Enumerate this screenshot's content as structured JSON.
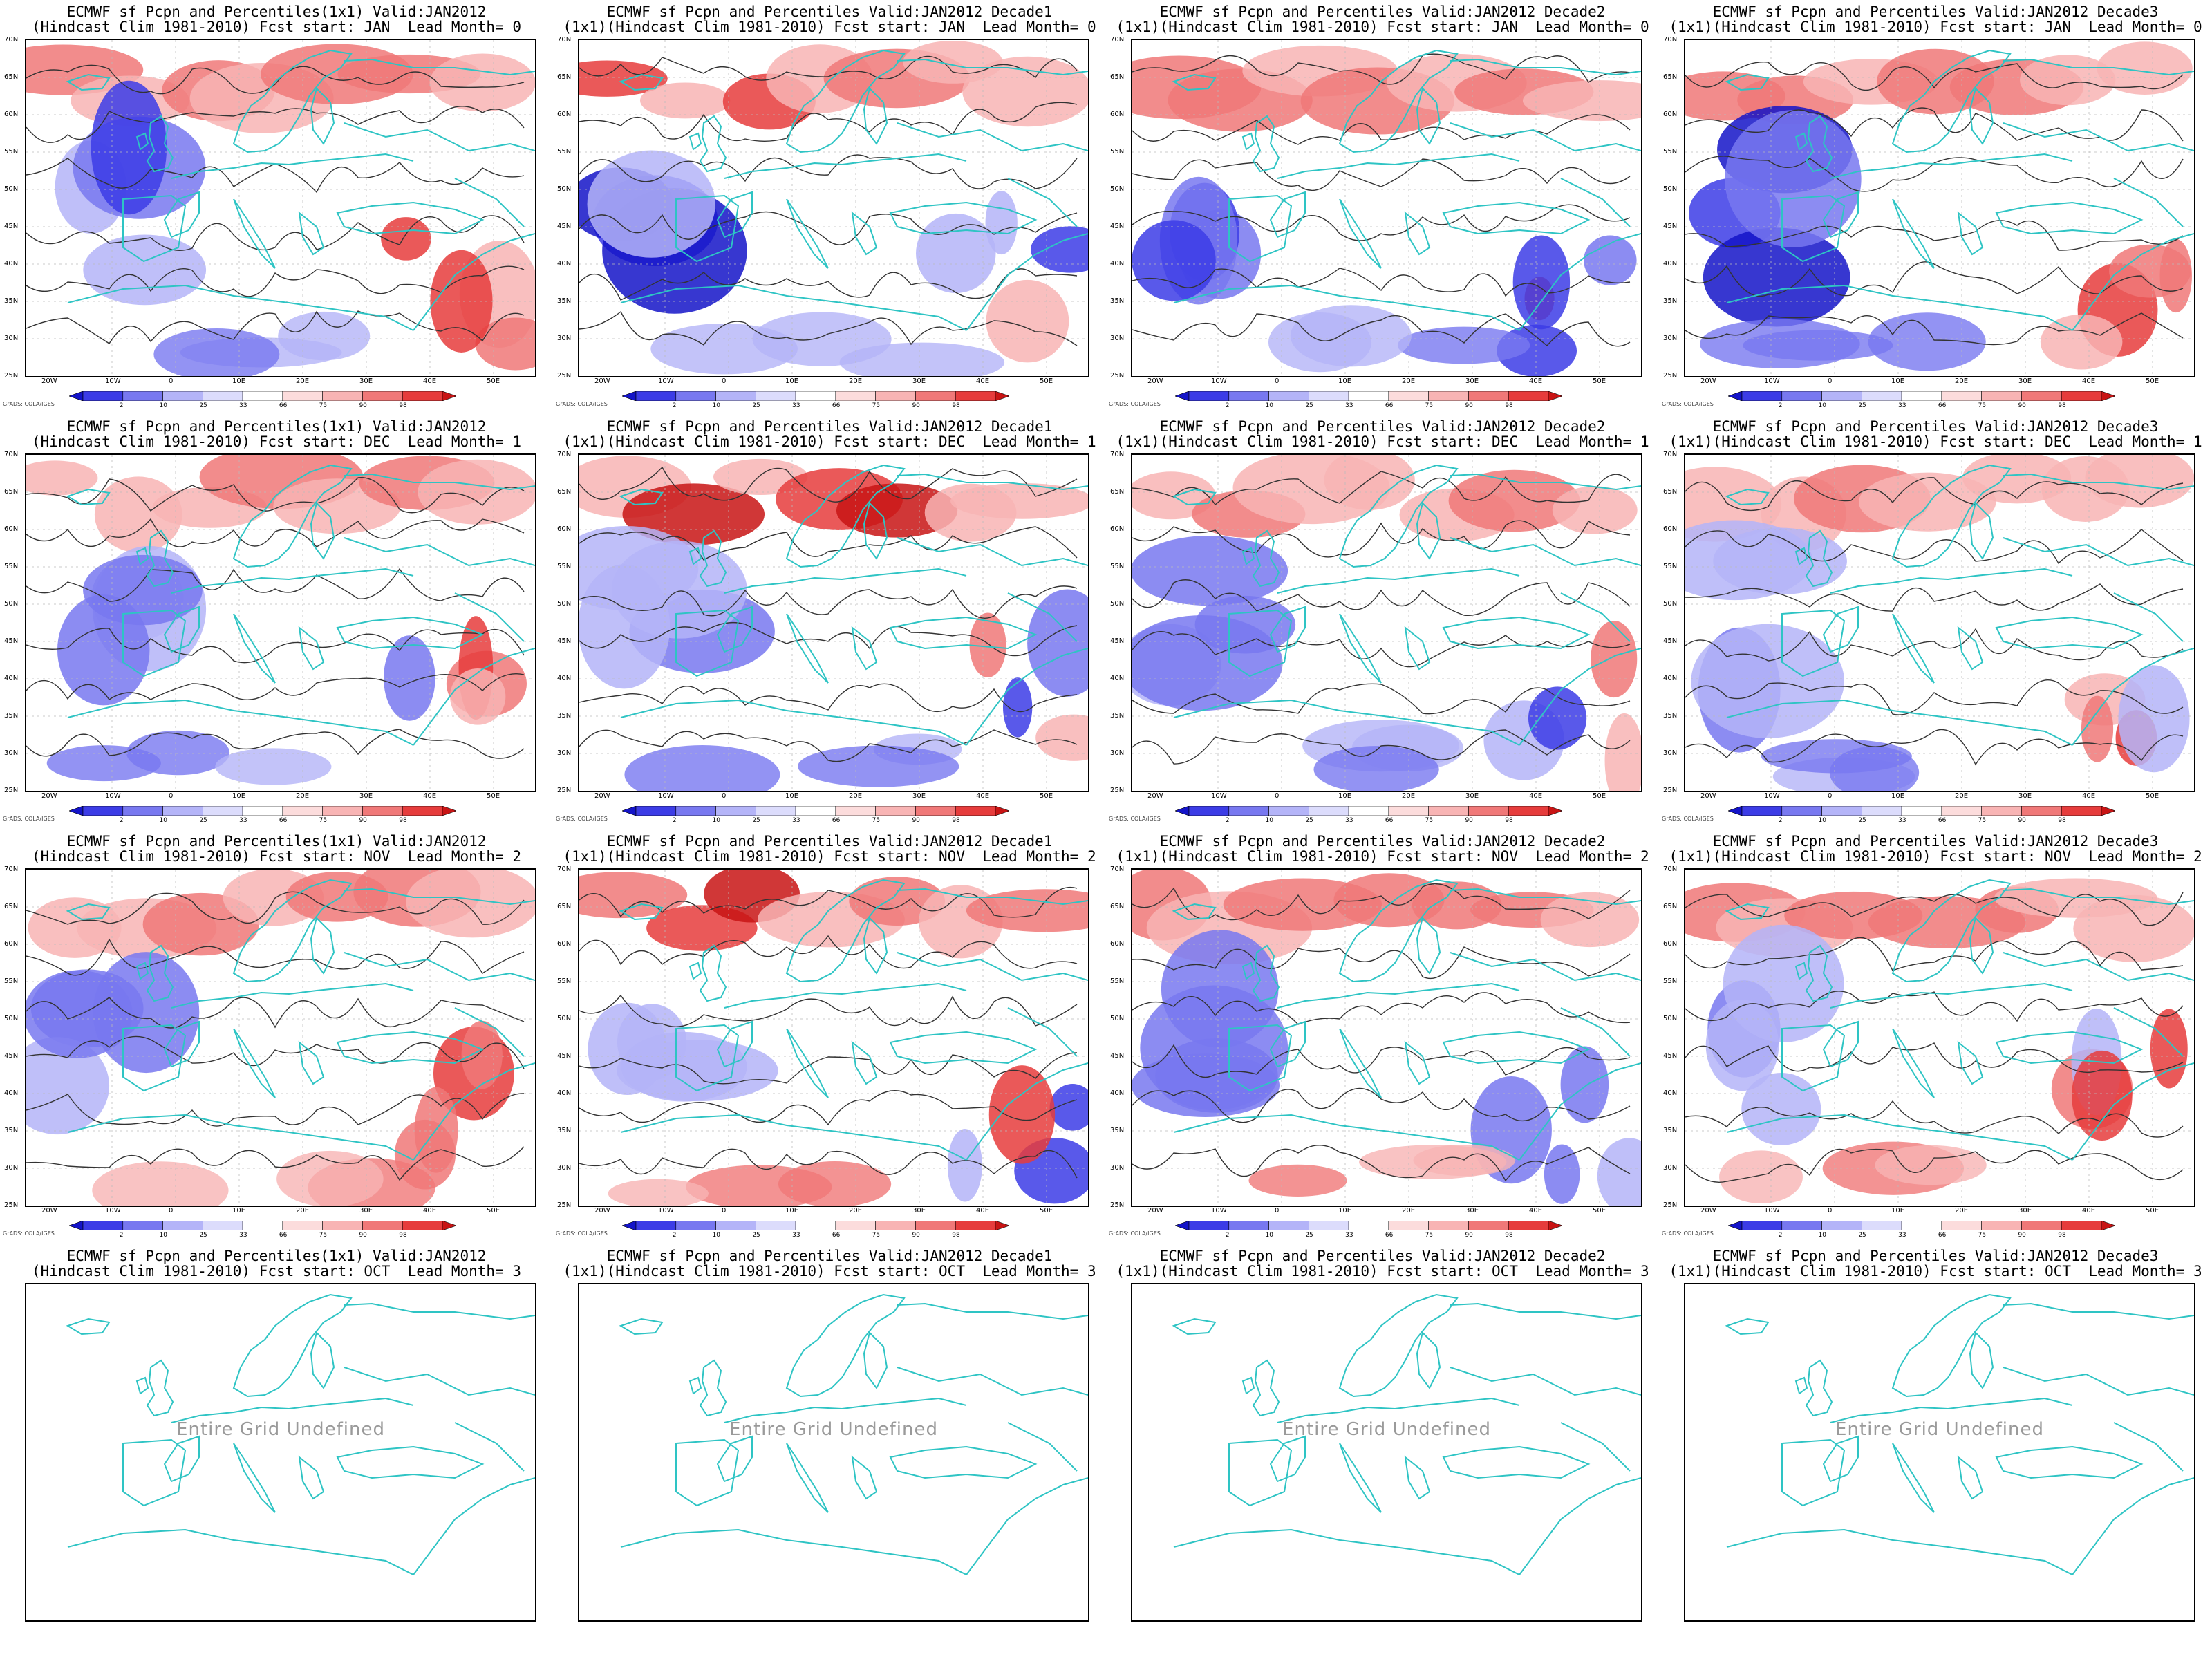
{
  "panels": [
    {
      "title1": "ECMWF sf Pcpn and Percentiles(1x1) Valid:JAN2012",
      "title2": "(Hindcast Clim 1981-2010) Fcst start: JAN  Lead Month= 0",
      "undefined": false
    },
    {
      "title1": "ECMWF sf Pcpn and Percentiles Valid:JAN2012 Decade1",
      "title2": "(1x1)(Hindcast Clim 1981-2010) Fcst start: JAN  Lead Month= 0",
      "undefined": false
    },
    {
      "title1": "ECMWF sf Pcpn and Percentiles Valid:JAN2012 Decade2",
      "title2": "(1x1)(Hindcast Clim 1981-2010) Fcst start: JAN  Lead Month= 0",
      "undefined": false
    },
    {
      "title1": "ECMWF sf Pcpn and Percentiles Valid:JAN2012 Decade3",
      "title2": "(1x1)(Hindcast Clim 1981-2010) Fcst start: JAN  Lead Month= 0",
      "undefined": false
    },
    {
      "title1": "ECMWF sf Pcpn and Percentiles(1x1) Valid:JAN2012",
      "title2": "(Hindcast Clim 1981-2010) Fcst start: DEC  Lead Month= 1",
      "undefined": false
    },
    {
      "title1": "ECMWF sf Pcpn and Percentiles Valid:JAN2012 Decade1",
      "title2": "(1x1)(Hindcast Clim 1981-2010) Fcst start: DEC  Lead Month= 1",
      "undefined": false
    },
    {
      "title1": "ECMWF sf Pcpn and Percentiles Valid:JAN2012 Decade2",
      "title2": "(1x1)(Hindcast Clim 1981-2010) Fcst start: DEC  Lead Month= 1",
      "undefined": false
    },
    {
      "title1": "ECMWF sf Pcpn and Percentiles Valid:JAN2012 Decade3",
      "title2": "(1x1)(Hindcast Clim 1981-2010) Fcst start: DEC  Lead Month= 1",
      "undefined": false
    },
    {
      "title1": "ECMWF sf Pcpn and Percentiles(1x1) Valid:JAN2012",
      "title2": "(Hindcast Clim 1981-2010) Fcst start: NOV  Lead Month= 2",
      "undefined": false
    },
    {
      "title1": "ECMWF sf Pcpn and Percentiles Valid:JAN2012 Decade1",
      "title2": "(1x1)(Hindcast Clim 1981-2010) Fcst start: NOV  Lead Month= 2",
      "undefined": false
    },
    {
      "title1": "ECMWF sf Pcpn and Percentiles Valid:JAN2012 Decade2",
      "title2": "(1x1)(Hindcast Clim 1981-2010) Fcst start: NOV  Lead Month= 2",
      "undefined": false
    },
    {
      "title1": "ECMWF sf Pcpn and Percentiles Valid:JAN2012 Decade3",
      "title2": "(1x1)(Hindcast Clim 1981-2010) Fcst start: NOV  Lead Month= 2",
      "undefined": false
    },
    {
      "title1": "ECMWF sf Pcpn and Percentiles(1x1) Valid:JAN2012",
      "title2": "(Hindcast Clim 1981-2010) Fcst start: OCT  Lead Month= 3",
      "undefined": true
    },
    {
      "title1": "ECMWF sf Pcpn and Percentiles Valid:JAN2012 Decade1",
      "title2": "(1x1)(Hindcast Clim 1981-2010) Fcst start: OCT  Lead Month= 3",
      "undefined": true
    },
    {
      "title1": "ECMWF sf Pcpn and Percentiles Valid:JAN2012 Decade2",
      "title2": "(1x1)(Hindcast Clim 1981-2010) Fcst start: OCT  Lead Month= 3",
      "undefined": true
    },
    {
      "title1": "ECMWF sf Pcpn and Percentiles Valid:JAN2012 Decade3",
      "title2": "(1x1)(Hindcast Clim 1981-2010) Fcst start: OCT  Lead Month= 3",
      "undefined": true
    }
  ],
  "undefined_text": "Entire Grid Undefined",
  "lat_labels": [
    "70N",
    "65N",
    "60N",
    "55N",
    "50N",
    "45N",
    "40N",
    "35N",
    "30N",
    "25N"
  ],
  "lon_labels": [
    "20W",
    "10W",
    "0",
    "10E",
    "20E",
    "30E",
    "40E",
    "50E"
  ],
  "colorbar": {
    "labels": [
      "2",
      "10",
      "25",
      "33",
      "66",
      "75",
      "90",
      "98"
    ],
    "colors": [
      "#1414c8",
      "#3c3ce6",
      "#7878f0",
      "#b4b4f8",
      "#dcdcfc",
      "#ffffff",
      "#fcdcdc",
      "#f8b4b4",
      "#f07878",
      "#e63c3c",
      "#c81414"
    ]
  },
  "credit": "GrADS: COLA/IGES",
  "colors": {
    "coast": "#2ec4c4",
    "contour": "#333333"
  }
}
